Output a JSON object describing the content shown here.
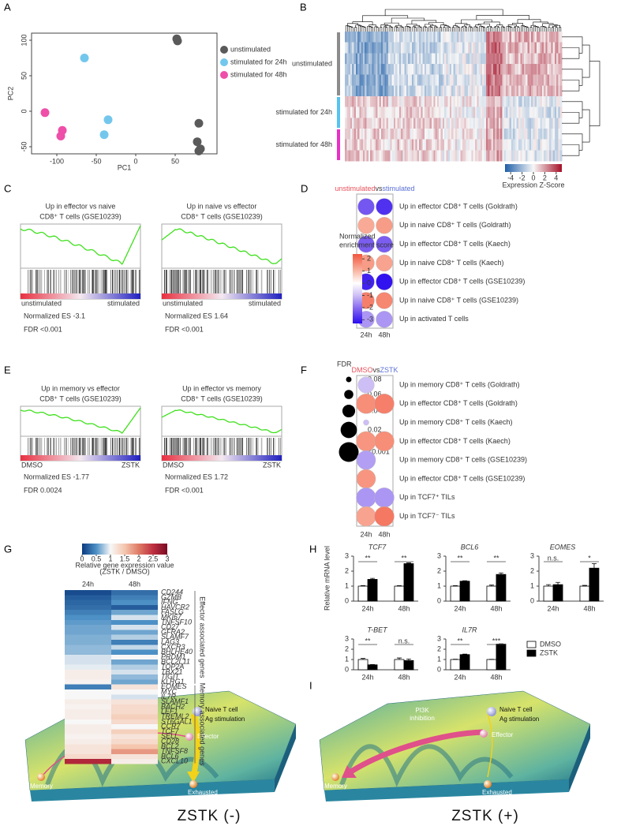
{
  "chart_data": [
    {
      "type": "scatter",
      "panel": "A",
      "xlabel": "PC1",
      "ylabel": "PC2",
      "xlim": [
        -132,
        103
      ],
      "ylim": [
        -60,
        110
      ],
      "xticks": [
        -100,
        -50,
        0,
        50
      ],
      "yticks": [
        -50,
        0,
        50,
        100
      ],
      "series": [
        {
          "name": "unstimulated",
          "color": "#5a5a5a",
          "x": [
            52,
            53,
            80,
            78,
            82,
            80
          ],
          "y": [
            102,
            99,
            -17,
            -43,
            -53,
            -56
          ]
        },
        {
          "name": "stimulated for 24h",
          "color": "#74c7ec",
          "x": [
            -65,
            -35,
            -40
          ],
          "y": [
            75,
            -12,
            -33
          ]
        },
        {
          "name": "stimulated for 48h",
          "color": "#ee4fa8",
          "x": [
            -115,
            -93,
            -95
          ],
          "y": [
            -2,
            -27,
            -35
          ]
        }
      ]
    },
    {
      "type": "clustered-heatmap",
      "panel": "B",
      "row_groups": [
        {
          "name": "unstimulated",
          "color": "#8c8c8c"
        },
        {
          "name": "stimulated for 24h",
          "color": "#57c3ef"
        },
        {
          "name": "stimulated for 48h",
          "color": "#e830c8"
        }
      ],
      "colorbar_label": "Expression Z-Score",
      "clim": [
        -5,
        5
      ],
      "cticks": [
        -4,
        -2,
        0,
        2,
        4
      ]
    },
    {
      "type": "gsea",
      "panel": "C",
      "left_label": "unstimulated",
      "right_label": "stimulated",
      "left_color": "#e8505b",
      "right_color": "#5a6fd6",
      "plots": [
        {
          "title": [
            "Up in effector vs naive",
            "CD8⁺ T cells (GSE10239)"
          ],
          "nes": "Normalized ES -3.1",
          "fdr": "FDR <0.001"
        },
        {
          "title": [
            "Up in naive vs effector",
            "CD8⁺ T cells (GSE10239)"
          ],
          "nes": "Normalized ES 1.64",
          "fdr": "FDR <0.001"
        }
      ]
    },
    {
      "type": "dotplot",
      "panel": "D",
      "header": [
        "unstimulated",
        "vs",
        "stimulated"
      ],
      "header_colors": [
        "#e8505b",
        "#333333",
        "#5a6fd6"
      ],
      "columns": [
        "24h",
        "48h"
      ],
      "rows": [
        "Up in effector CD8⁺ T cells (Goldrath)",
        "Up in naive CD8⁺ T cells (Goldrath)",
        "Up in effector CD8⁺ T cells (Kaech)",
        "Up in naive CD8⁺ T cells (Kaech)",
        "Up in effector CD8⁺ T cells (GSE10239)",
        "Up in naive CD8⁺ T cells (GSE10239)",
        "Up in activated T cells"
      ],
      "values": [
        [
          -2.3,
          -2.8
        ],
        [
          1.2,
          1.4
        ],
        [
          -2.2,
          -2.2
        ],
        [
          1.4,
          1.3
        ],
        [
          -3.0,
          -3.2
        ],
        [
          1.8,
          1.7
        ],
        [
          -1.5,
          -1.5
        ]
      ],
      "legend_title": [
        "Normalized",
        "enrichment score"
      ],
      "colorscale": [
        [
          -3.3,
          "#2b0cf0"
        ],
        [
          -2,
          "#8a6cf0"
        ],
        [
          -1,
          "#cdbff5"
        ],
        [
          0,
          "#ffffff"
        ],
        [
          1,
          "#f9b8a5"
        ],
        [
          2.4,
          "#f2553d"
        ]
      ],
      "cticks": [
        2,
        1,
        0,
        -1,
        -2,
        -3
      ]
    },
    {
      "type": "gsea",
      "panel": "E",
      "left_label": "DMSO",
      "right_label": "ZSTK",
      "left_color": "#e8505b",
      "right_color": "#5a6fd6",
      "plots": [
        {
          "title": [
            "Up in memory vs effector",
            "CD8⁺ T cells (GSE10239)"
          ],
          "nes": "Normalized ES -1.77",
          "fdr": "FDR 0.0024"
        },
        {
          "title": [
            "Up in effector vs memory",
            "CD8⁺ T cells (GSE10239)"
          ],
          "nes": "Normalized ES 1.72",
          "fdr": "FDR <0.001"
        }
      ]
    },
    {
      "type": "dotplot",
      "panel": "F",
      "header": [
        "DMSO",
        "vs",
        "ZSTK"
      ],
      "header_colors": [
        "#e8505b",
        "#333333",
        "#5a6fd6"
      ],
      "columns": [
        "24h",
        "48h"
      ],
      "rows": [
        "Up in memory CD8⁺ T cells (Goldrath)",
        "Up in effector CD8⁺ T cells (Goldrath)",
        "Up in memory CD8⁺ T cells (Kaech)",
        "Up in effector CD8⁺ T cells (Kaech)",
        "Up in memory CD8⁺ T cells (GSE10239)",
        "Up in effector CD8⁺ T cells (GSE10239)",
        "Up in TCF7⁺ TILs",
        "Up in TCF7⁻ TILs"
      ],
      "values": [
        [
          -1.0,
          null
        ],
        [
          1.6,
          1.8
        ],
        [
          -1.0,
          null
        ],
        [
          1.5,
          1.6
        ],
        [
          -1.4,
          null
        ],
        [
          1.5,
          null
        ],
        [
          -1.5,
          -1.5
        ],
        [
          1.3,
          1.9
        ]
      ],
      "fdr": [
        [
          0.02,
          null
        ],
        [
          0.001,
          0.001
        ],
        [
          0.08,
          null
        ],
        [
          0.001,
          0.001
        ],
        [
          0.005,
          null
        ],
        [
          0.005,
          null
        ],
        [
          0.001,
          0.001
        ],
        [
          0.001,
          0.001
        ]
      ],
      "fdr_title": "FDR",
      "fdr_ticks": [
        0.08,
        0.06,
        0.04,
        0.02,
        {
          "value": 0.001,
          "label": "<0.001"
        }
      ]
    },
    {
      "type": "heatmap",
      "panel": "G",
      "columns": [
        "24h",
        "48h"
      ],
      "colorbar_label": [
        "Relative gene expression value",
        "(ZSTK / DMSO)"
      ],
      "colorscale": [
        [
          0,
          "#0b3b80"
        ],
        [
          0.5,
          "#4d90c5"
        ],
        [
          1,
          "#f7f7f7"
        ],
        [
          1.5,
          "#f5c6ae"
        ],
        [
          2,
          "#de7a66"
        ],
        [
          2.5,
          "#bd3040"
        ],
        [
          3,
          "#7a0a22"
        ]
      ],
      "cticks": [
        0,
        0.5,
        1,
        1.5,
        2,
        2.5,
        3
      ],
      "groups": [
        {
          "label": "Effector associated genes",
          "genes": [
            "CD244",
            "GZMB",
            "IFNG",
            "HAVCR2",
            "FASLG",
            "MKI67",
            "TNFSF10",
            "CD27",
            "GFRA2",
            "SLAMF7",
            "LAG3",
            "CXCR3",
            "BHLHE40",
            "PRDM1",
            "BCL2L11",
            "TOP2A",
            "TBX21",
            "TIGIT",
            "KLRG1"
          ],
          "values": [
            [
              0.1,
              0.3
            ],
            [
              0.2,
              0.4
            ],
            [
              0.25,
              0.5
            ],
            [
              0.3,
              0.2
            ],
            [
              0.4,
              0.6
            ],
            [
              0.5,
              0.9
            ],
            [
              0.55,
              0.5
            ],
            [
              0.6,
              0.9
            ],
            [
              0.6,
              0.6
            ],
            [
              0.65,
              0.8
            ],
            [
              0.65,
              0.4
            ],
            [
              0.7,
              0.85
            ],
            [
              0.7,
              0.5
            ],
            [
              0.9,
              1.0
            ],
            [
              0.9,
              0.6
            ],
            [
              0.95,
              0.8
            ],
            [
              1.1,
              0.9
            ],
            [
              1.1,
              0.7
            ],
            [
              1.05,
              0.6
            ]
          ]
        },
        {
          "label": "Memory associated genes",
          "genes": [
            "EOMES",
            "MYC",
            "IL7R",
            "SLAMF1",
            "BACH2",
            "LEF1",
            "TREML2",
            "ST6GAL1",
            "CCR7",
            "TCF7",
            "SELL",
            "CD28",
            "BCL2",
            "TNFSF8",
            "BCL6",
            "CXCL10"
          ],
          "values": [
            [
              0.4,
              1.2
            ],
            [
              1.0,
              1.0
            ],
            [
              1.0,
              0.9
            ],
            [
              1.1,
              1.2
            ],
            [
              1.05,
              1.3
            ],
            [
              1.1,
              1.3
            ],
            [
              1.1,
              1.4
            ],
            [
              1.0,
              1.3
            ],
            [
              1.1,
              1.0
            ],
            [
              1.1,
              1.4
            ],
            [
              1.05,
              1.2
            ],
            [
              1.1,
              1.3
            ],
            [
              1.2,
              1.5
            ],
            [
              1.2,
              1.8
            ],
            [
              1.3,
              1.2
            ],
            [
              2.6,
              1.1
            ]
          ]
        }
      ]
    },
    {
      "type": "bar",
      "panel": "H",
      "ylabel": "Relative mRNA level",
      "categories": [
        "24h",
        "48h"
      ],
      "ylim": [
        0,
        3
      ],
      "yticks": [
        0,
        1,
        2,
        3
      ],
      "legend": [
        {
          "name": "DMSO",
          "color": "#ffffff"
        },
        {
          "name": "ZSTK",
          "color": "#000000"
        }
      ],
      "genes": [
        {
          "title": "TCF7",
          "series": [
            {
              "values": [
                1,
                1
              ],
              "errors": [
                0.04,
                0.03
              ]
            },
            {
              "values": [
                1.45,
                2.5
              ],
              "errors": [
                0.07,
                0.05
              ]
            }
          ],
          "significance": [
            "**",
            "**"
          ]
        },
        {
          "title": "BCL6",
          "series": [
            {
              "values": [
                1,
                1
              ],
              "errors": [
                0.03,
                0.07
              ]
            },
            {
              "values": [
                1.33,
                1.78
              ],
              "errors": [
                0.03,
                0.1
              ]
            }
          ],
          "significance": [
            "**",
            "**"
          ]
        },
        {
          "title": "EOMES",
          "series": [
            {
              "values": [
                1,
                1
              ],
              "errors": [
                0.1,
                0.05
              ]
            },
            {
              "values": [
                1.1,
                2.2
              ],
              "errors": [
                0.15,
                0.3
              ]
            }
          ],
          "significance": [
            "n.s.",
            "*"
          ]
        },
        {
          "title": "T-BET",
          "series": [
            {
              "values": [
                1,
                1
              ],
              "errors": [
                0.1,
                0.15
              ]
            },
            {
              "values": [
                0.48,
                0.9
              ],
              "errors": [
                0.03,
                0.15
              ]
            }
          ],
          "significance": [
            "**",
            "n.s."
          ]
        },
        {
          "title": "IL7R",
          "series": [
            {
              "values": [
                1,
                1
              ],
              "errors": [
                0.03,
                0.02
              ]
            },
            {
              "values": [
                1.48,
                2.5
              ],
              "errors": [
                0.05,
                0.03
              ]
            }
          ],
          "significance": [
            "**",
            "***"
          ]
        }
      ]
    }
  ],
  "illustration": {
    "panel": "I",
    "labels": {
      "naive": "Naive T cell",
      "stimulation": "Ag stimulation",
      "effector": "Effector",
      "memory": "Memory",
      "exhausted": "Exhausted",
      "inhibition": [
        "PI3K",
        "inhibition"
      ]
    },
    "captions": [
      "ZSTK (-)",
      "ZSTK (+)"
    ]
  }
}
